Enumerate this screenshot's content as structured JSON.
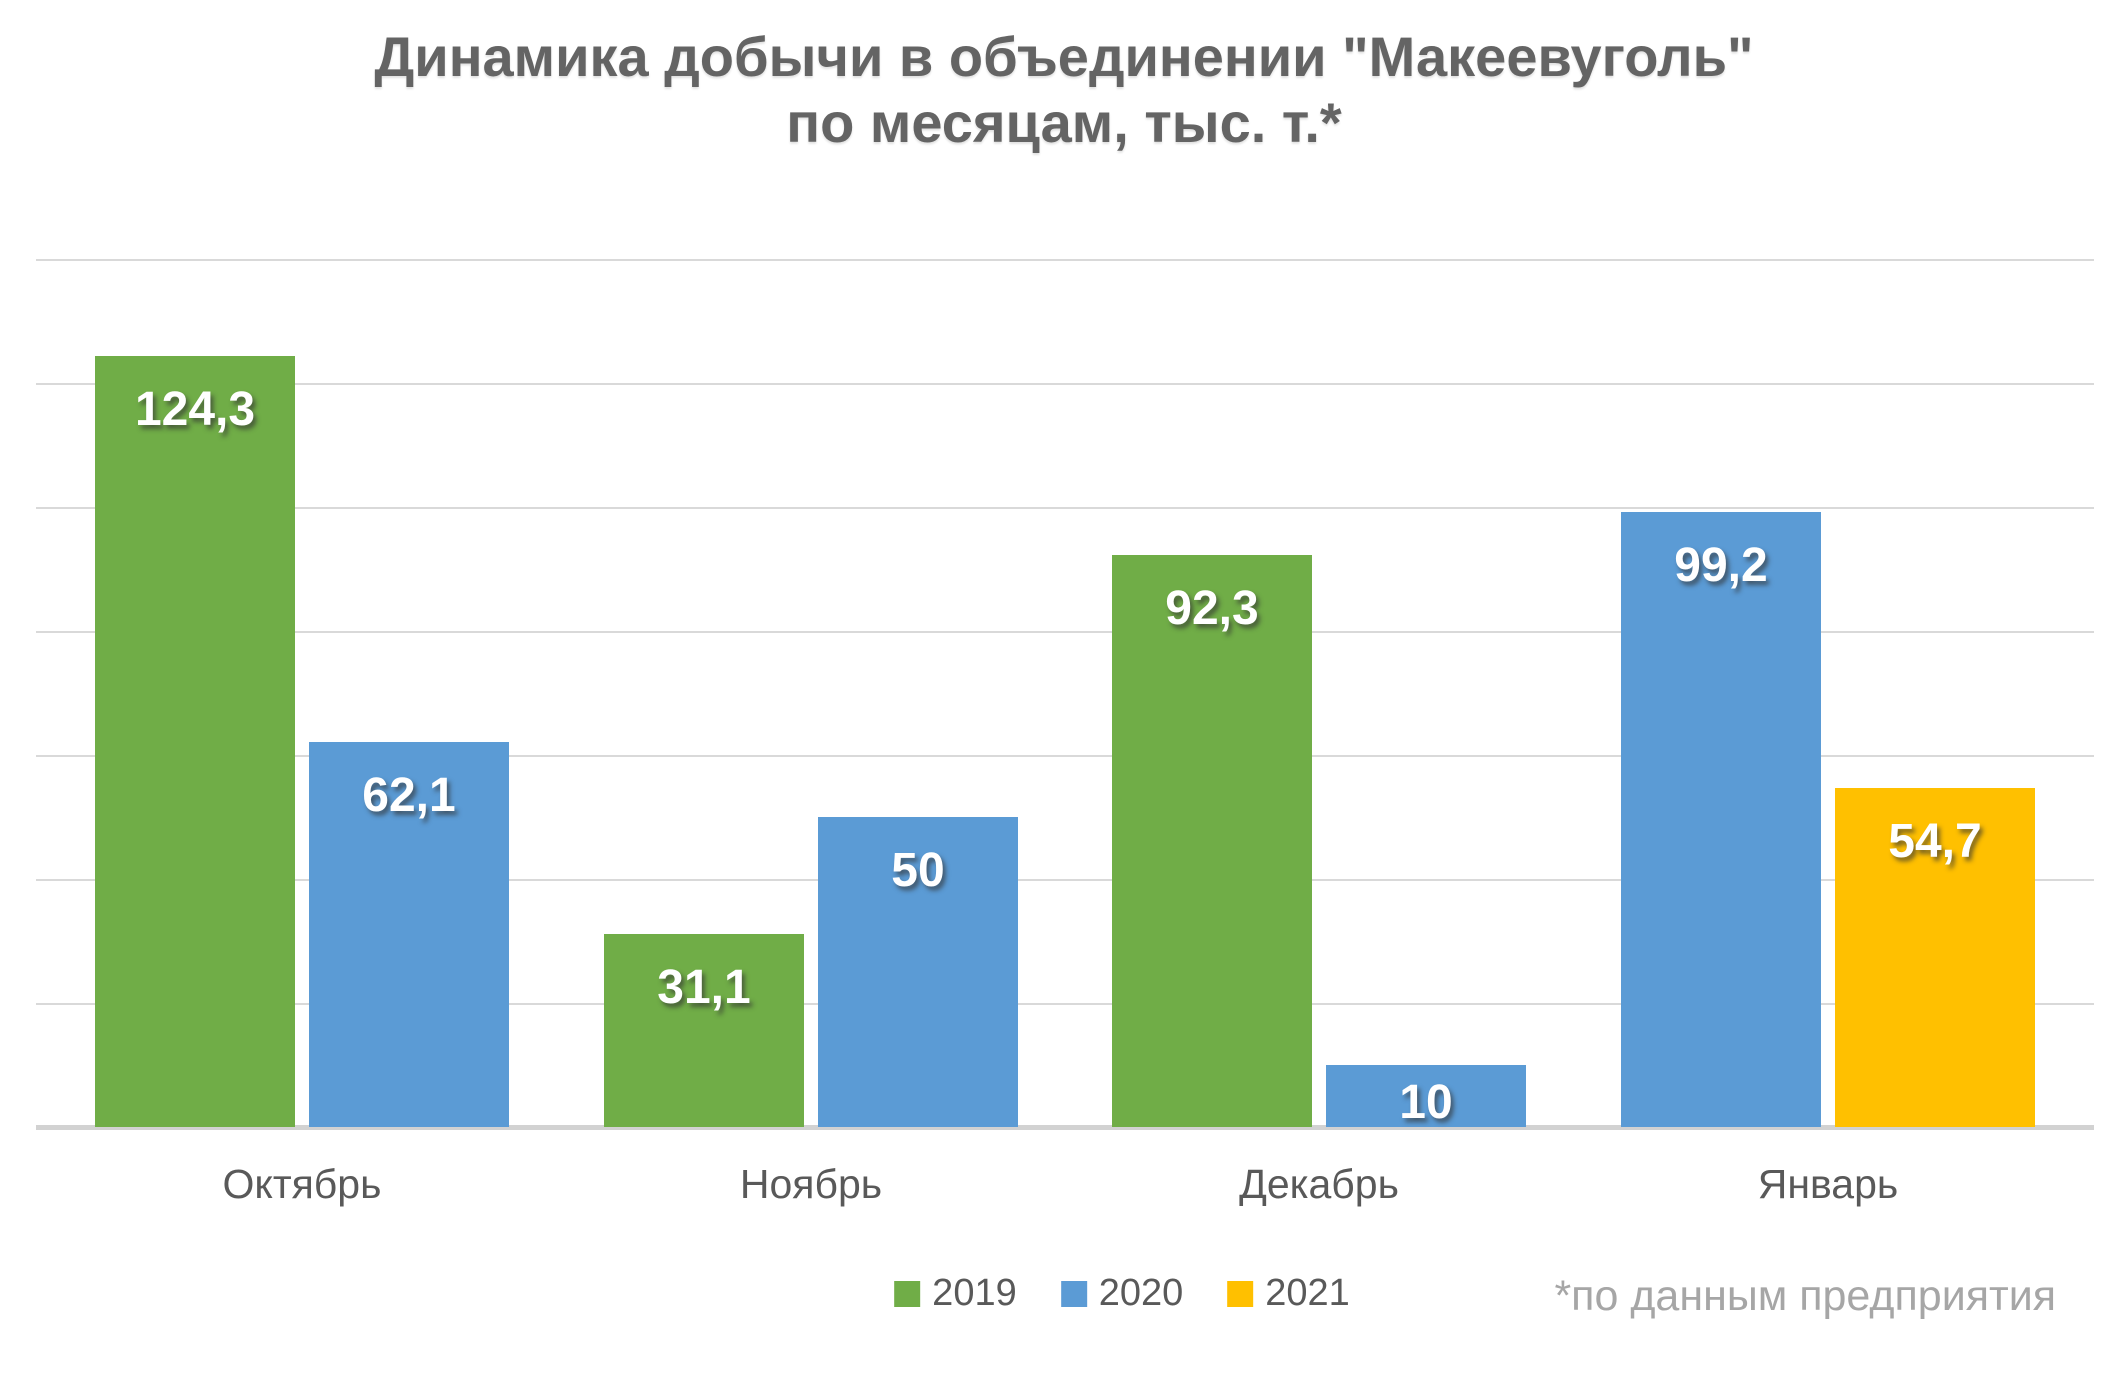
{
  "title": {
    "line1": "Динамика добычи в объединении \"Макеевуголь\"",
    "line2": "по месяцам, тыс. т.*"
  },
  "footnote": "*по данным предприятия",
  "legend": [
    {
      "label": "2019",
      "color": "#70AD47"
    },
    {
      "label": "2020",
      "color": "#5B9BD5"
    },
    {
      "label": "2021",
      "color": "#FFC000"
    }
  ],
  "colors": {
    "green_2019": "#70AD47",
    "blue_2020": "#5B9BD5",
    "yellow_2021": "#FFC000",
    "gridline": "#d9d9d9",
    "title_text": "#646464",
    "axis_text": "#595959",
    "footnote_text": "#a6a6a6",
    "bar_label_text": "#ffffff"
  },
  "chart_data": {
    "type": "bar",
    "title": "Динамика добычи в объединении \"Макеевуголь\" по месяцам, тыс. т.*",
    "categories": [
      "Октябрь",
      "Ноябрь",
      "Декабрь",
      "Январь"
    ],
    "series": [
      {
        "name": "2019",
        "color": "#70AD47",
        "values": [
          124.3,
          31.1,
          92.3,
          null
        ],
        "labels": [
          "124,3",
          "31,1",
          "92,3",
          null
        ]
      },
      {
        "name": "2020",
        "color": "#5B9BD5",
        "values": [
          62.1,
          50,
          10,
          99.2
        ],
        "labels": [
          "62,1",
          "50",
          "10",
          "99,2"
        ]
      },
      {
        "name": "2021",
        "color": "#FFC000",
        "values": [
          null,
          null,
          null,
          54.7
        ],
        "labels": [
          null,
          null,
          null,
          "54,7"
        ]
      }
    ],
    "xlabel": "",
    "ylabel": "",
    "ylim": [
      0,
      140
    ],
    "gridline_step": 20,
    "grid": true,
    "y_tick_labels_visible": false,
    "value_labels": "inside-end",
    "decimal_separator": ",",
    "legend_position": "bottom"
  }
}
